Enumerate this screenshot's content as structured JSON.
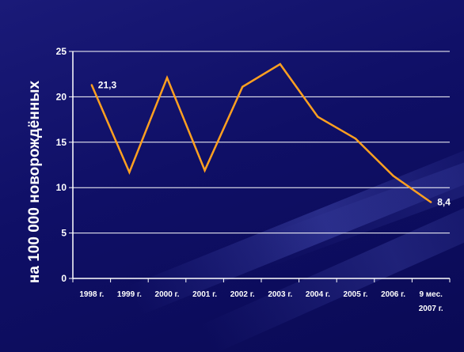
{
  "chart_data": {
    "type": "line",
    "title": "",
    "xlabel": "",
    "ylabel": "на 100 000 новорождённых",
    "categories": [
      "1998 г.",
      "1999 г.",
      "2000 г.",
      "2001 г.",
      "2002 г.",
      "2003 г.",
      "2004 г.",
      "2005 г.",
      "2006 г.",
      "9 мес. 2007 г."
    ],
    "series": [
      {
        "values": [
          21.3,
          11.7,
          22.1,
          11.9,
          21.1,
          23.6,
          17.8,
          15.4,
          11.3,
          8.4
        ]
      }
    ],
    "ylim": [
      0,
      25
    ],
    "yticks": [
      "0",
      "5",
      "10",
      "15",
      "20",
      "25"
    ],
    "data_labels": [
      {
        "index": 0,
        "text": "21,3"
      },
      {
        "index": 9,
        "text": "8,4"
      }
    ],
    "grid": true,
    "legend": "none",
    "colors": {
      "line": "#ffa020",
      "axis": "#ffffff",
      "grid": "#ffffff",
      "background": "#13136e"
    }
  }
}
